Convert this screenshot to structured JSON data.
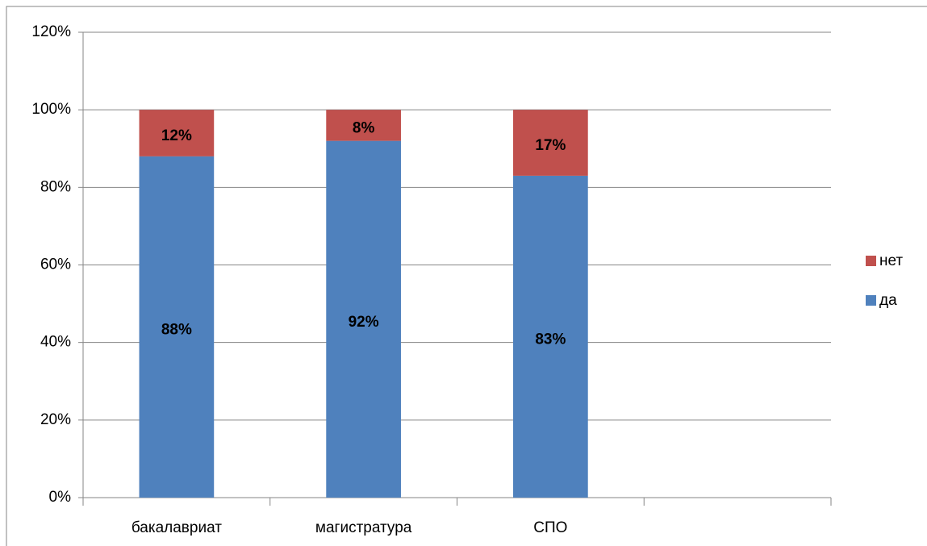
{
  "chart_data": {
    "type": "stacked_bar",
    "categories": [
      "бакалавриат",
      "магистратура",
      "СПО",
      null
    ],
    "series": [
      {
        "name": "да",
        "color": "#4f81bd",
        "values": [
          88,
          92,
          83,
          null
        ],
        "value_labels": [
          "88%",
          "92%",
          "83%",
          null
        ]
      },
      {
        "name": "нет",
        "color": "#c0504d",
        "values": [
          12,
          8,
          17,
          null
        ],
        "value_labels": [
          "12%",
          "8%",
          "17%",
          null
        ]
      }
    ],
    "ylim": [
      0,
      120
    ],
    "yticks": [
      {
        "value": 0,
        "label": "0%"
      },
      {
        "value": 20,
        "label": "20%"
      },
      {
        "value": 40,
        "label": "40%"
      },
      {
        "value": 60,
        "label": "60%"
      },
      {
        "value": 80,
        "label": "80%"
      },
      {
        "value": 100,
        "label": "100%"
      },
      {
        "value": 120,
        "label": "120%"
      }
    ],
    "grid": true,
    "legend": "right"
  }
}
